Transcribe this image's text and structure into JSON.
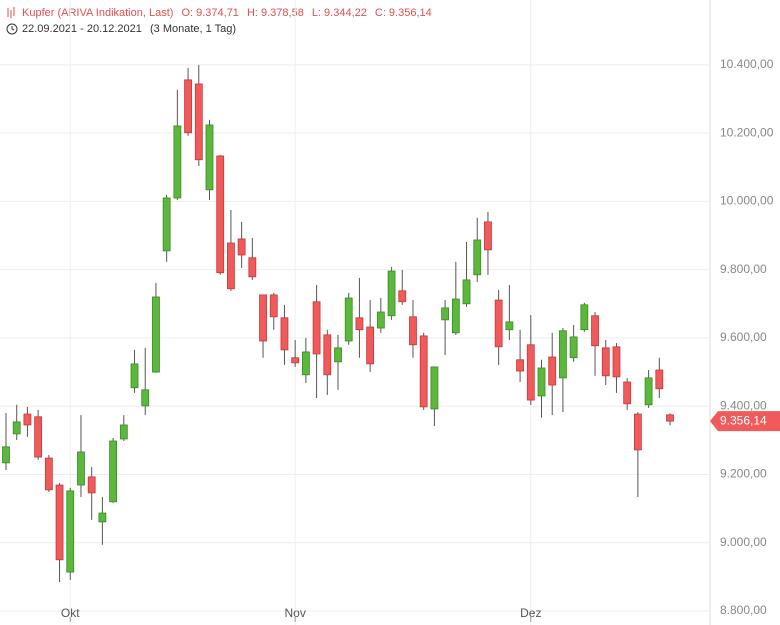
{
  "chart_data": {
    "type": "candlestick",
    "title": "Kupfer (ARIVA Indikation, Last)",
    "header_labels": [
      "O: 9.374,71",
      "H: 9.378,58",
      "L: 9.344,22",
      "C: 9.356,14"
    ],
    "date_range": "22.09.2021 - 20.12.2021",
    "period": "(3 Monate, 1 Tag)",
    "last_label": "9.356,14",
    "up_color": "#5cb83c",
    "down_color": "#f05a5a",
    "grid": true,
    "categories": [
      null,
      null,
      null,
      null,
      null,
      null,
      "Okt",
      null,
      null,
      null,
      null,
      null,
      null,
      null,
      null,
      null,
      null,
      null,
      null,
      null,
      null,
      null,
      null,
      null,
      null,
      null,
      null,
      "Nov",
      null,
      null,
      null,
      null,
      null,
      null,
      null,
      null,
      null,
      null,
      null,
      null,
      null,
      null,
      null,
      null,
      null,
      null,
      null,
      null,
      null,
      "Dez",
      null,
      null,
      null,
      null,
      null,
      null,
      null,
      null,
      null,
      null,
      null,
      null,
      null
    ],
    "open": [
      9234,
      9319,
      9377,
      9369,
      9248,
      9169,
      8914,
      9169,
      9193,
      9061,
      9120,
      9304,
      9454,
      9401,
      9500,
      9855,
      10010,
      10356,
      10344,
      10034,
      10133,
      9878,
      9890,
      9835,
      9726,
      9726,
      9659,
      9542,
      9492,
      9706,
      9609,
      9530,
      9591,
      9659,
      9632,
      9629,
      9665,
      9738,
      9662,
      9606,
      9392,
      9653,
      9615,
      9700,
      9785,
      9940,
      9711,
      9624,
      9536,
      9580,
      9430,
      9544,
      9483,
      9542,
      9624,
      9665,
      9571,
      9574,
      9471,
      9377,
      9404,
      9506,
      9374.71
    ],
    "high": [
      9380,
      9404,
      9398,
      9389,
      9257,
      9175,
      9161,
      9374,
      9222,
      9134,
      9307,
      9374,
      9565,
      9571,
      9761,
      10019,
      10327,
      10391,
      10400,
      10239,
      10136,
      9975,
      9940,
      9893,
      9726,
      9732,
      9697,
      9594,
      9600,
      9755,
      9624,
      9609,
      9732,
      9776,
      9711,
      9717,
      9808,
      9799,
      9711,
      9615,
      9515,
      9711,
      9823,
      9881,
      9952,
      9969,
      9741,
      9755,
      9624,
      9667,
      9536,
      9615,
      9629,
      9638,
      9703,
      9676,
      9594,
      9585,
      9483,
      9383,
      9506,
      9542,
      9378.58
    ],
    "low": [
      9213,
      9301,
      9310,
      9243,
      9149,
      8885,
      8891,
      9134,
      9067,
      8994,
      9117,
      9298,
      9439,
      9374,
      9498,
      9823,
      10004,
      10192,
      10104,
      10004,
      9785,
      9738,
      9805,
      9770,
      9542,
      9624,
      9521,
      9515,
      9468,
      9424,
      9433,
      9448,
      9580,
      9542,
      9500,
      9615,
      9653,
      9697,
      9542,
      9389,
      9342,
      9550,
      9609,
      9691,
      9764,
      9785,
      9521,
      9594,
      9471,
      9404,
      9366,
      9374,
      9383,
      9530,
      9618,
      9489,
      9462,
      9439,
      9389,
      9134,
      9395,
      9424,
      9344.22
    ],
    "close": [
      9281,
      9354,
      9345,
      9251,
      9155,
      8950,
      9152,
      9266,
      9146,
      9087,
      9298,
      9345,
      9524,
      9448,
      9720,
      10010,
      10221,
      10201,
      10122,
      10224,
      9791,
      9744,
      9843,
      9779,
      9591,
      9662,
      9565,
      9527,
      9559,
      9553,
      9492,
      9571,
      9717,
      9624,
      9524,
      9676,
      9796,
      9706,
      9580,
      9398,
      9515,
      9688,
      9714,
      9770,
      9887,
      9858,
      9574,
      9647,
      9503,
      9418,
      9512,
      9462,
      9621,
      9603,
      9697,
      9577,
      9489,
      9486,
      9407,
      9272,
      9483,
      9451,
      9356.14
    ],
    "ylim": [
      8759,
      10590
    ],
    "yticks": [
      {
        "value": 8800,
        "label": "8.800,00"
      },
      {
        "value": 9000,
        "label": "9.000,00"
      },
      {
        "value": 9200,
        "label": "9.200,00"
      },
      {
        "value": 9400,
        "label": "9.400,00"
      },
      {
        "value": 9600,
        "label": "9.600,00"
      },
      {
        "value": 9800,
        "label": "9.800,00"
      },
      {
        "value": 10000,
        "label": "10.000,00"
      },
      {
        "value": 10200,
        "label": "10.200,00"
      },
      {
        "value": 10400,
        "label": "10.400,00"
      }
    ]
  }
}
